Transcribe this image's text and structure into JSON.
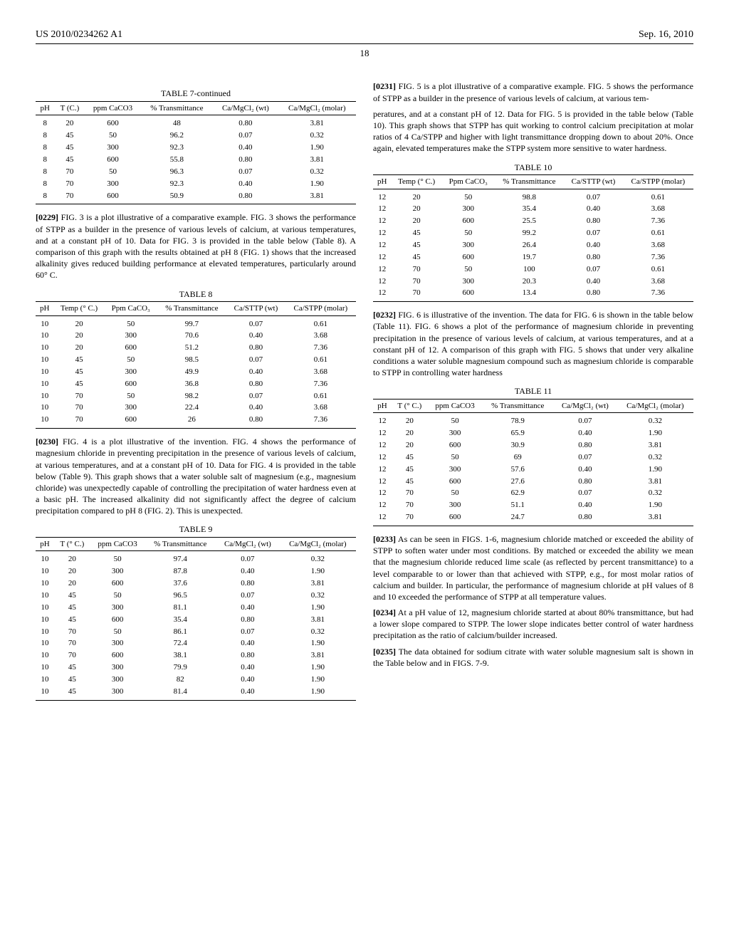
{
  "header": {
    "docnum": "US 2010/0234262 A1",
    "date": "Sep. 16, 2010",
    "page": "18"
  },
  "tables": {
    "t7": {
      "caption": "TABLE 7-continued",
      "cols": [
        "pH",
        "T (C.)",
        "ppm CaCO3",
        "% Transmittance",
        "Ca/MgCl₂ (wt)",
        "Ca/MgCl₂ (molar)"
      ],
      "rows": [
        [
          "8",
          "20",
          "600",
          "48",
          "0.80",
          "3.81"
        ],
        [
          "8",
          "45",
          "50",
          "96.2",
          "0.07",
          "0.32"
        ],
        [
          "8",
          "45",
          "300",
          "92.3",
          "0.40",
          "1.90"
        ],
        [
          "8",
          "45",
          "600",
          "55.8",
          "0.80",
          "3.81"
        ],
        [
          "8",
          "70",
          "50",
          "96.3",
          "0.07",
          "0.32"
        ],
        [
          "8",
          "70",
          "300",
          "92.3",
          "0.40",
          "1.90"
        ],
        [
          "8",
          "70",
          "600",
          "50.9",
          "0.80",
          "3.81"
        ]
      ]
    },
    "t8": {
      "caption": "TABLE 8",
      "cols": [
        "pH",
        "Temp (° C.)",
        "Ppm CaCO₃",
        "% Transmittance",
        "Ca/STTP (wt)",
        "Ca/STPP (molar)"
      ],
      "rows": [
        [
          "10",
          "20",
          "50",
          "99.7",
          "0.07",
          "0.61"
        ],
        [
          "10",
          "20",
          "300",
          "70.6",
          "0.40",
          "3.68"
        ],
        [
          "10",
          "20",
          "600",
          "51.2",
          "0.80",
          "7.36"
        ],
        [
          "10",
          "45",
          "50",
          "98.5",
          "0.07",
          "0.61"
        ],
        [
          "10",
          "45",
          "300",
          "49.9",
          "0.40",
          "3.68"
        ],
        [
          "10",
          "45",
          "600",
          "36.8",
          "0.80",
          "7.36"
        ],
        [
          "10",
          "70",
          "50",
          "98.2",
          "0.07",
          "0.61"
        ],
        [
          "10",
          "70",
          "300",
          "22.4",
          "0.40",
          "3.68"
        ],
        [
          "10",
          "70",
          "600",
          "26",
          "0.80",
          "7.36"
        ]
      ]
    },
    "t9": {
      "caption": "TABLE 9",
      "cols": [
        "pH",
        "T (° C.)",
        "ppm CaCO3",
        "% Transmittance",
        "Ca/MgCl₂ (wt)",
        "Ca/MgCl₂ (molar)"
      ],
      "rows": [
        [
          "10",
          "20",
          "50",
          "97.4",
          "0.07",
          "0.32"
        ],
        [
          "10",
          "20",
          "300",
          "87.8",
          "0.40",
          "1.90"
        ],
        [
          "10",
          "20",
          "600",
          "37.6",
          "0.80",
          "3.81"
        ],
        [
          "10",
          "45",
          "50",
          "96.5",
          "0.07",
          "0.32"
        ],
        [
          "10",
          "45",
          "300",
          "81.1",
          "0.40",
          "1.90"
        ],
        [
          "10",
          "45",
          "600",
          "35.4",
          "0.80",
          "3.81"
        ],
        [
          "10",
          "70",
          "50",
          "86.1",
          "0.07",
          "0.32"
        ],
        [
          "10",
          "70",
          "300",
          "72.4",
          "0.40",
          "1.90"
        ],
        [
          "10",
          "70",
          "600",
          "38.1",
          "0.80",
          "3.81"
        ],
        [
          "10",
          "45",
          "300",
          "79.9",
          "0.40",
          "1.90"
        ],
        [
          "10",
          "45",
          "300",
          "82",
          "0.40",
          "1.90"
        ],
        [
          "10",
          "45",
          "300",
          "81.4",
          "0.40",
          "1.90"
        ]
      ]
    },
    "t10": {
      "caption": "TABLE 10",
      "cols": [
        "pH",
        "Temp (° C.)",
        "Ppm CaCO₃",
        "% Transmittance",
        "Ca/STTP (wt)",
        "Ca/STPP (molar)"
      ],
      "rows": [
        [
          "12",
          "20",
          "50",
          "98.8",
          "0.07",
          "0.61"
        ],
        [
          "12",
          "20",
          "300",
          "35.4",
          "0.40",
          "3.68"
        ],
        [
          "12",
          "20",
          "600",
          "25.5",
          "0.80",
          "7.36"
        ],
        [
          "12",
          "45",
          "50",
          "99.2",
          "0.07",
          "0.61"
        ],
        [
          "12",
          "45",
          "300",
          "26.4",
          "0.40",
          "3.68"
        ],
        [
          "12",
          "45",
          "600",
          "19.7",
          "0.80",
          "7.36"
        ],
        [
          "12",
          "70",
          "50",
          "100",
          "0.07",
          "0.61"
        ],
        [
          "12",
          "70",
          "300",
          "20.3",
          "0.40",
          "3.68"
        ],
        [
          "12",
          "70",
          "600",
          "13.4",
          "0.80",
          "7.36"
        ]
      ]
    },
    "t11": {
      "caption": "TABLE 11",
      "cols": [
        "pH",
        "T (° C.)",
        "ppm CaCO3",
        "% Transmittance",
        "Ca/MgCl₂ (wt)",
        "Ca/MgCl₂ (molar)"
      ],
      "rows": [
        [
          "12",
          "20",
          "50",
          "78.9",
          "0.07",
          "0.32"
        ],
        [
          "12",
          "20",
          "300",
          "65.9",
          "0.40",
          "1.90"
        ],
        [
          "12",
          "20",
          "600",
          "30.9",
          "0.80",
          "3.81"
        ],
        [
          "12",
          "45",
          "50",
          "69",
          "0.07",
          "0.32"
        ],
        [
          "12",
          "45",
          "300",
          "57.6",
          "0.40",
          "1.90"
        ],
        [
          "12",
          "45",
          "600",
          "27.6",
          "0.80",
          "3.81"
        ],
        [
          "12",
          "70",
          "50",
          "62.9",
          "0.07",
          "0.32"
        ],
        [
          "12",
          "70",
          "300",
          "51.1",
          "0.40",
          "1.90"
        ],
        [
          "12",
          "70",
          "600",
          "24.7",
          "0.80",
          "3.81"
        ]
      ]
    }
  },
  "paras": {
    "p0229": {
      "num": "[0229]",
      "text": "FIG. 3 is a plot illustrative of a comparative example. FIG. 3 shows the performance of STPP as a builder in the presence of various levels of calcium, at various temperatures, and at a constant pH of 10. Data for FIG. 3 is provided in the table below (Table 8). A comparison of this graph with the results obtained at pH 8 (FIG. 1) shows that the increased alkalinity gives reduced building performance at elevated temperatures, particularly around 60° C."
    },
    "p0230": {
      "num": "[0230]",
      "text": "FIG. 4 is a plot illustrative of the invention. FIG. 4 shows the performance of magnesium chloride in preventing precipitation in the presence of various levels of calcium, at various temperatures, and at a constant pH of 10. Data for FIG. 4 is provided in the table below (Table 9). This graph shows that a water soluble salt of magnesium (e.g., magnesium chloride) was unexpectedly capable of controlling the precipitation of water hardness even at a basic pH. The increased alkalinity did not significantly affect the degree of calcium precipitation compared to pH 8 (FIG. 2). This is unexpected."
    },
    "p0231": {
      "num": "[0231]",
      "text": "FIG. 5 is a plot illustrative of a comparative example. FIG. 5 shows the performance of STPP as a builder in the presence of various levels of calcium, at various tem-"
    },
    "p0231b": {
      "text": "peratures, and at a constant pH of 12. Data for FIG. 5 is provided in the table below (Table 10). This graph shows that STPP has quit working to control calcium precipitation at molar ratios of 4 Ca/STPP and higher with light transmittance dropping down to about 20%. Once again, elevated temperatures make the STPP system more sensitive to water hardness."
    },
    "p0232": {
      "num": "[0232]",
      "text": "FIG. 6 is illustrative of the invention. The data for FIG. 6 is shown in the table below (Table 11). FIG. 6 shows a plot of the performance of magnesium chloride in preventing precipitation in the presence of various levels of calcium, at various temperatures, and at a constant pH of 12. A comparison of this graph with FIG. 5 shows that under very alkaline conditions a water soluble magnesium compound such as magnesium chloride is comparable to STPP in controlling water hardness"
    },
    "p0233": {
      "num": "[0233]",
      "text": "As can be seen in FIGS. 1-6, magnesium chloride matched or exceeded the ability of STPP to soften water under most conditions. By matched or exceeded the ability we mean that the magnesium chloride reduced lime scale (as reflected by percent transmittance) to a level comparable to or lower than that achieved with STPP, e.g., for most molar ratios of calcium and builder. In particular, the performance of magnesium chloride at pH values of 8 and 10 exceeded the performance of STPP at all temperature values."
    },
    "p0234": {
      "num": "[0234]",
      "text": "At a pH value of 12, magnesium chloride started at about 80% transmittance, but had a lower slope compared to STPP. The lower slope indicates better control of water hardness precipitation as the ratio of calcium/builder increased."
    },
    "p0235": {
      "num": "[0235]",
      "text": "The data obtained for sodium citrate with water soluble magnesium salt is shown in the Table below and in FIGS. 7-9."
    }
  }
}
